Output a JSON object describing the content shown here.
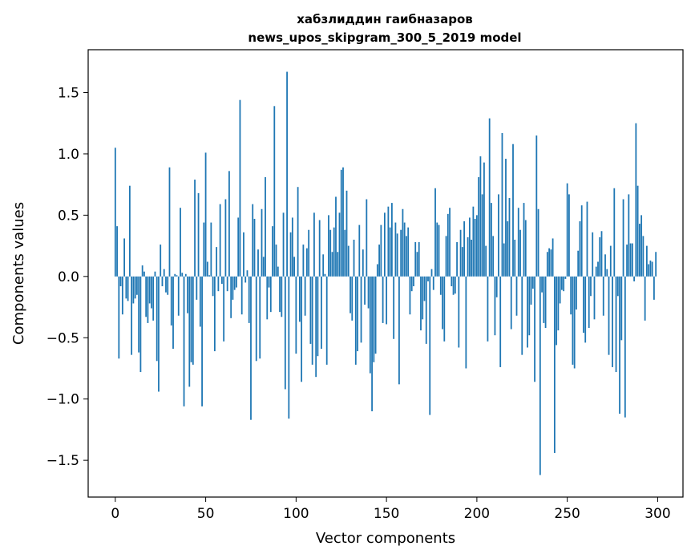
{
  "chart_data": {
    "type": "bar",
    "title": "хабзлиддин гаибназаров",
    "subtitle": "news_upos_skipgram_300_5_2019 model",
    "xlabel": "Vector components",
    "ylabel": "Components values",
    "xlim": [
      -15,
      314
    ],
    "ylim": [
      -1.8,
      1.85
    ],
    "xticks": [
      0,
      50,
      100,
      150,
      200,
      250,
      300
    ],
    "yticks": [
      -1.5,
      -1.0,
      -0.5,
      0.0,
      0.5,
      1.0,
      1.5
    ],
    "ytick_labels": [
      "−1.5",
      "−1.0",
      "−0.5",
      "0.0",
      "0.5",
      "1.0",
      "1.5"
    ],
    "grid": false,
    "bar_color": "#1f77b4",
    "x": "0..299",
    "values": [
      1.05,
      0.41,
      -0.67,
      -0.08,
      -0.31,
      0.31,
      -0.18,
      -0.2,
      0.74,
      -0.64,
      -0.22,
      -0.18,
      -0.15,
      -0.62,
      -0.78,
      0.09,
      0.04,
      -0.33,
      -0.38,
      -0.22,
      -0.26,
      -0.36,
      0.04,
      -0.69,
      -0.94,
      0.26,
      -0.08,
      0.06,
      -0.13,
      -0.15,
      0.89,
      -0.4,
      -0.59,
      0.02,
      0.01,
      -0.32,
      0.56,
      0.03,
      -1.06,
      0.02,
      -0.3,
      -0.9,
      -0.7,
      -0.72,
      0.79,
      -0.19,
      0.68,
      -0.41,
      -1.06,
      0.44,
      1.01,
      0.12,
      0.01,
      0.44,
      -0.16,
      -0.61,
      0.24,
      -0.12,
      0.59,
      -0.06,
      -0.53,
      0.63,
      -0.12,
      0.86,
      -0.34,
      -0.19,
      -0.11,
      -0.09,
      0.48,
      1.44,
      -0.31,
      0.36,
      -0.05,
      0.05,
      -0.38,
      -1.17,
      0.59,
      0.47,
      -0.69,
      0.22,
      -0.67,
      0.55,
      0.16,
      0.81,
      -0.35,
      -0.09,
      -0.29,
      0.41,
      1.39,
      0.26,
      0.08,
      -0.29,
      -0.33,
      0.52,
      -0.92,
      1.67,
      -1.16,
      0.36,
      0.48,
      0.16,
      -0.63,
      0.73,
      -0.37,
      -0.86,
      0.26,
      -0.32,
      0.23,
      0.38,
      -0.55,
      -0.72,
      0.52,
      -0.82,
      -0.65,
      0.46,
      -0.59,
      0.18,
      0.02,
      -0.72,
      0.5,
      0.38,
      0.2,
      0.4,
      0.65,
      0.2,
      0.52,
      0.87,
      0.89,
      0.38,
      0.7,
      0.25,
      -0.3,
      -0.36,
      0.3,
      -0.72,
      -0.61,
      0.42,
      -0.54,
      0.22,
      -0.23,
      0.63,
      -0.26,
      -0.79,
      -1.1,
      -0.7,
      -0.63,
      0.1,
      0.26,
      0.42,
      -0.38,
      0.52,
      -0.39,
      0.57,
      0.4,
      0.6,
      -0.51,
      0.44,
      0.35,
      -0.88,
      0.38,
      0.55,
      0.44,
      0.33,
      0.4,
      -0.31,
      -0.12,
      -0.08,
      0.28,
      0.2,
      0.28,
      -0.44,
      -0.35,
      -0.2,
      -0.55,
      -0.04,
      -1.13,
      0.06,
      -0.11,
      0.72,
      0.44,
      0.42,
      -0.15,
      -0.43,
      -0.53,
      0.33,
      0.51,
      0.56,
      -0.08,
      -0.15,
      -0.14,
      0.28,
      -0.58,
      0.38,
      0.24,
      0.45,
      -0.75,
      0.32,
      0.48,
      0.3,
      0.57,
      0.47,
      0.5,
      0.81,
      0.98,
      0.67,
      0.93,
      0.25,
      -0.53,
      1.29,
      0.6,
      0.33,
      -0.48,
      -0.17,
      0.67,
      -0.74,
      1.17,
      0.27,
      0.96,
      0.45,
      0.64,
      -0.43,
      1.08,
      0.3,
      -0.32,
      0.56,
      0.38,
      -0.64,
      0.6,
      0.46,
      -0.58,
      -0.48,
      -0.23,
      -0.1,
      -0.86,
      1.15,
      0.55,
      -1.62,
      -0.13,
      -0.38,
      -0.42,
      0.2,
      0.23,
      0.22,
      0.31,
      -1.44,
      -0.56,
      -0.44,
      -0.22,
      -0.11,
      -0.12,
      -0.02,
      0.76,
      0.67,
      -0.31,
      -0.72,
      -0.75,
      -0.27,
      0.21,
      0.45,
      0.58,
      -0.46,
      -0.54,
      0.61,
      -0.42,
      -0.16,
      0.36,
      -0.35,
      0.08,
      0.12,
      0.32,
      0.37,
      -0.32,
      0.18,
      0.06,
      -0.64,
      0.25,
      -0.74,
      0.72,
      -0.78,
      -0.16,
      -1.12,
      -0.52,
      0.63,
      -1.15,
      0.26,
      0.67,
      0.27,
      0.27,
      -0.04,
      1.25,
      0.74,
      0.43,
      0.5,
      0.33,
      -0.36,
      0.25,
      0.1,
      0.13,
      0.12,
      -0.19,
      0.2
    ]
  }
}
